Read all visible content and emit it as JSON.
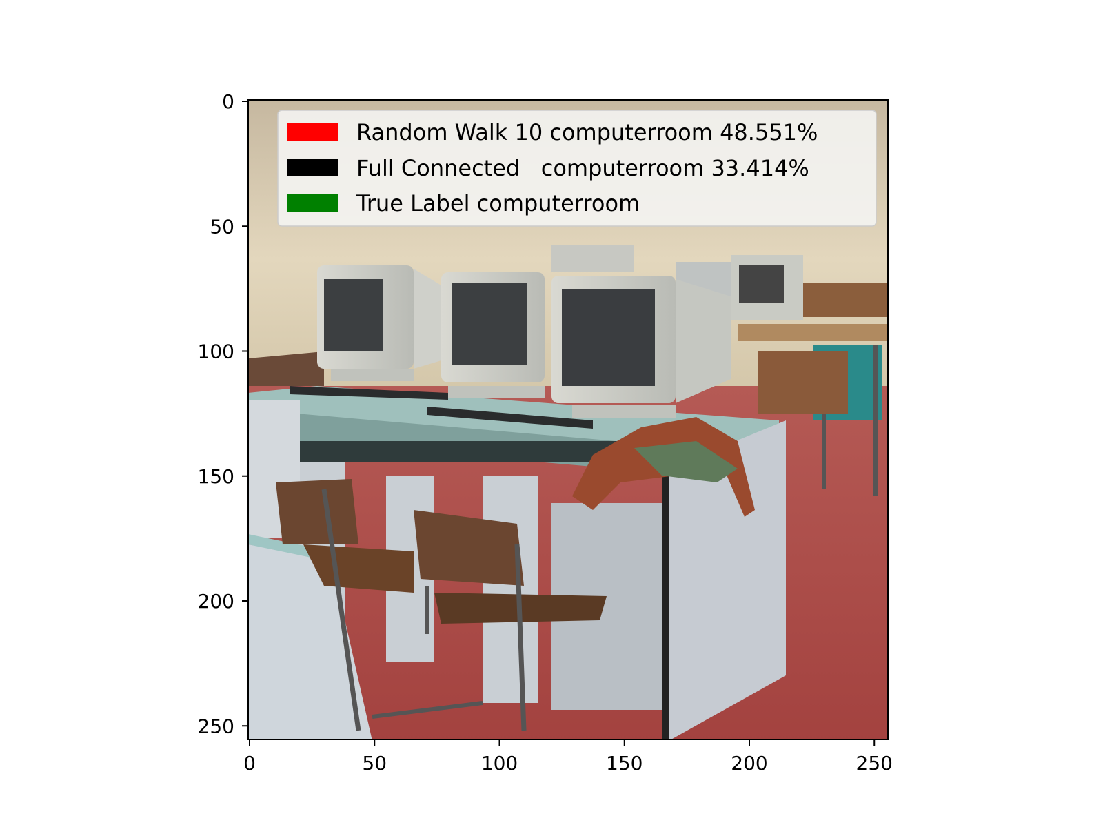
{
  "axes": {
    "x_ticks": [
      "0",
      "50",
      "100",
      "150",
      "200",
      "250"
    ],
    "y_ticks": [
      "0",
      "50",
      "100",
      "150",
      "200",
      "250"
    ]
  },
  "legend": {
    "placement": "top-right",
    "entries": [
      {
        "label": "Random Walk 10  computerroom 48.551%",
        "color": "#ff0000"
      },
      {
        "label": "Full Connected   computerroom 33.414%",
        "color": "#000000"
      },
      {
        "label": "True Label computerroom",
        "color": "#008000"
      }
    ]
  },
  "photo": {
    "scene": "computerroom"
  }
}
